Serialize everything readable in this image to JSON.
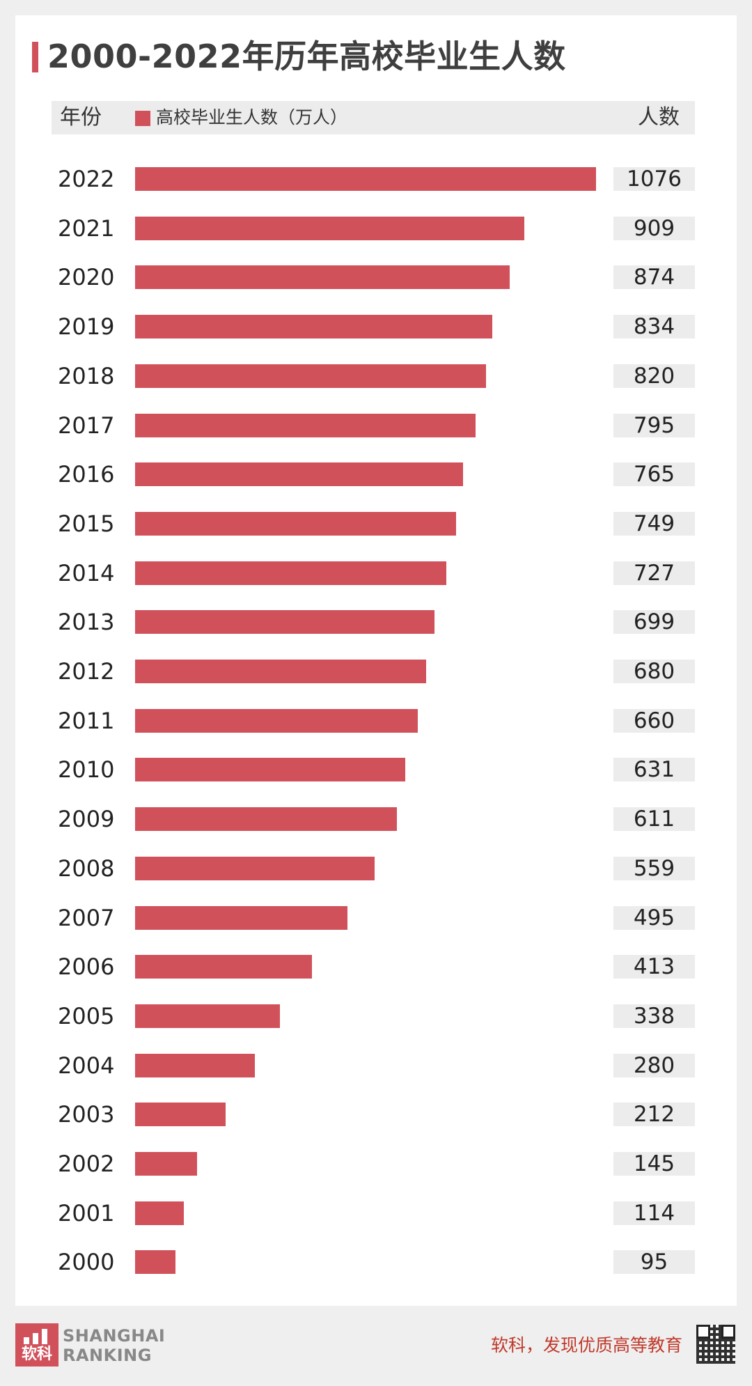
{
  "title": "2000-2022年历年高校毕业生人数",
  "header": {
    "year_label": "年份",
    "legend_label": "高校毕业生人数（万人）",
    "count_label": "人数"
  },
  "chart_data": {
    "type": "bar",
    "orientation": "horizontal",
    "title": "2000-2022年历年高校毕业生人数",
    "categories": [
      "2022",
      "2021",
      "2020",
      "2019",
      "2018",
      "2017",
      "2016",
      "2015",
      "2014",
      "2013",
      "2012",
      "2011",
      "2010",
      "2009",
      "2008",
      "2007",
      "2006",
      "2005",
      "2004",
      "2003",
      "2002",
      "2001",
      "2000"
    ],
    "series": [
      {
        "name": "高校毕业生人数（万人）",
        "values": [
          1076,
          909,
          874,
          834,
          820,
          795,
          765,
          749,
          727,
          699,
          680,
          660,
          631,
          611,
          559,
          495,
          413,
          338,
          280,
          212,
          145,
          114,
          95
        ]
      }
    ],
    "color": "#d1515b",
    "grid": false,
    "legend": "top-left"
  },
  "footer": {
    "brand_line1": "SHANGHAI",
    "brand_line2": "RANKING",
    "logo_text": "软科",
    "slogan": "软科，发现优质高等教育",
    "qr_icon": "qr-code-icon"
  },
  "colors": {
    "bar": "#d1515b",
    "label_bg": "#ececec",
    "slogan": "#c0392b"
  }
}
